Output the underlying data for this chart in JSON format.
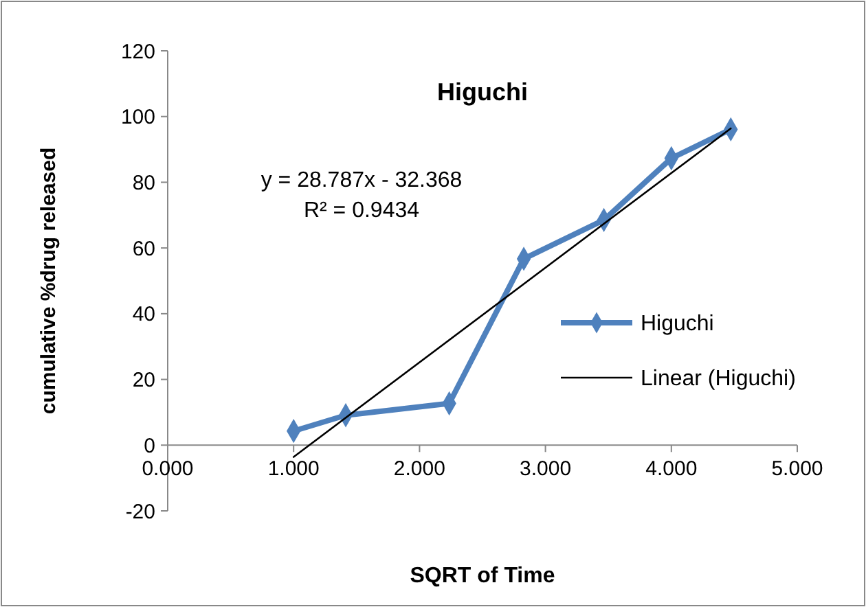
{
  "chart_data": {
    "type": "line",
    "title": "Higuchi",
    "xlabel": "SQRT of Time",
    "ylabel": "cumulative %drug released",
    "annotations": [
      "y = 28.787x - 32.368",
      "R² = 0.9434"
    ],
    "series": [
      {
        "name": "Higuchi",
        "color": "#4f81bd",
        "marker": "diamond",
        "x": [
          1.0,
          1.414,
          2.236,
          2.828,
          3.464,
          4.0,
          4.472
        ],
        "values": [
          4.3,
          9.1,
          12.7,
          56.7,
          68.5,
          87.3,
          96.1
        ]
      },
      {
        "name": "Linear (Higuchi)",
        "color": "#000000",
        "marker": "none",
        "x": [
          1.0,
          4.472
        ],
        "values": [
          -3.6,
          96.4
        ]
      }
    ],
    "xlim": [
      0,
      5
    ],
    "xticks": [
      {
        "value": 0,
        "label": "0.000"
      },
      {
        "value": 1,
        "label": "1.000"
      },
      {
        "value": 2,
        "label": "2.000"
      },
      {
        "value": 3,
        "label": "3.000"
      },
      {
        "value": 4,
        "label": "4.000"
      },
      {
        "value": 5,
        "label": "5.000"
      }
    ],
    "ylim": [
      -20,
      120
    ],
    "yticks": [
      -20,
      0,
      20,
      40,
      60,
      80,
      100,
      120
    ],
    "grid": false,
    "legend": "right"
  }
}
